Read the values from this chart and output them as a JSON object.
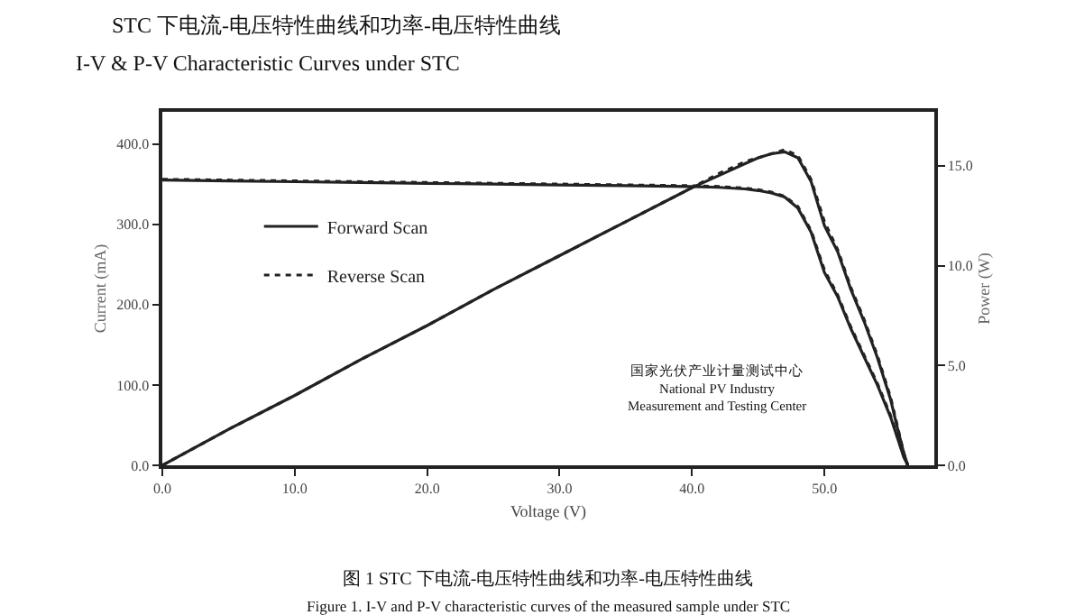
{
  "chart_data": {
    "type": "line",
    "title": "STC 下电流-电压特性曲线和功率-电压特性曲线",
    "subtitle": "I-V & P-V Characteristic Curves under STC",
    "xlabel": "Voltage (V)",
    "ylabel": "Current (mA)",
    "y2label": "Power (W)",
    "x": [
      0,
      5,
      10,
      15,
      20,
      25,
      30,
      35,
      40,
      42,
      44,
      45,
      46,
      47,
      48,
      49,
      50,
      51,
      52,
      53,
      54,
      55,
      55.5,
      56,
      56.3
    ],
    "series": [
      {
        "name": "Forward Scan",
        "color": "#222222",
        "line_style": "solid",
        "values": [
          355,
          354,
          353,
          352,
          351,
          350,
          349,
          348,
          347,
          346,
          344,
          342,
          339,
          334,
          320,
          290,
          240,
          210,
          170,
          135,
          100,
          60,
          35,
          10,
          0
        ]
      },
      {
        "name": "Reverse Scan",
        "color": "#222222",
        "line_style": "dotted",
        "values": [
          356,
          355,
          354,
          353,
          352,
          351,
          350,
          349,
          348,
          347,
          345,
          343,
          340,
          335,
          322,
          292,
          243,
          212,
          172,
          137,
          102,
          62,
          36,
          11,
          0
        ]
      },
      {
        "color": "#222222",
        "line_style": "solid",
        "axis": "y2",
        "values": [
          0,
          1.8,
          3.5,
          5.3,
          7.0,
          8.8,
          10.5,
          12.2,
          13.9,
          14.5,
          15.1,
          15.4,
          15.6,
          15.7,
          15.4,
          14.2,
          12.0,
          10.7,
          8.8,
          7.2,
          5.4,
          3.3,
          1.9,
          0.6,
          0
        ]
      },
      {
        "color": "#222222",
        "line_style": "dotted",
        "axis": "y2",
        "values": [
          0,
          1.8,
          3.5,
          5.3,
          7.0,
          8.8,
          10.5,
          12.2,
          13.9,
          14.6,
          15.2,
          15.4,
          15.6,
          15.8,
          15.5,
          14.3,
          12.2,
          10.8,
          8.9,
          7.3,
          5.5,
          3.4,
          2.0,
          0.6,
          0
        ]
      }
    ],
    "xlim": [
      0,
      58.3
    ],
    "ylim": [
      0,
      440
    ],
    "y2lim": [
      0,
      17.7
    ],
    "xticks": [
      {
        "value": 0,
        "label": "0.0"
      },
      {
        "value": 10,
        "label": "10.0"
      },
      {
        "value": 20,
        "label": "20.0"
      },
      {
        "value": 30,
        "label": "30.0"
      },
      {
        "value": 40,
        "label": "40.0"
      },
      {
        "value": 50,
        "label": "50.0"
      }
    ],
    "yticks": [
      {
        "value": 0,
        "label": "0.0"
      },
      {
        "value": 100,
        "label": "100.0"
      },
      {
        "value": 200,
        "label": "200.0"
      },
      {
        "value": 300,
        "label": "300.0"
      },
      {
        "value": 400,
        "label": "400.0"
      }
    ],
    "y2ticks": [
      {
        "value": 0,
        "label": "0.0"
      },
      {
        "value": 5,
        "label": "5.0"
      },
      {
        "value": 10,
        "label": "10.0"
      },
      {
        "value": 15,
        "label": "15.0"
      }
    ],
    "legend": "top left",
    "marker": "none",
    "annotations": [
      "国家光伏产业计量测试中心\nNational PV Industry\nMeasurement and Testing Center",
      "图 1 STC 下电流-电压特性曲线和功率-电压特性曲线",
      "Figure 1. I-V and P-V characteristic curves of the measured sample under STC"
    ]
  }
}
